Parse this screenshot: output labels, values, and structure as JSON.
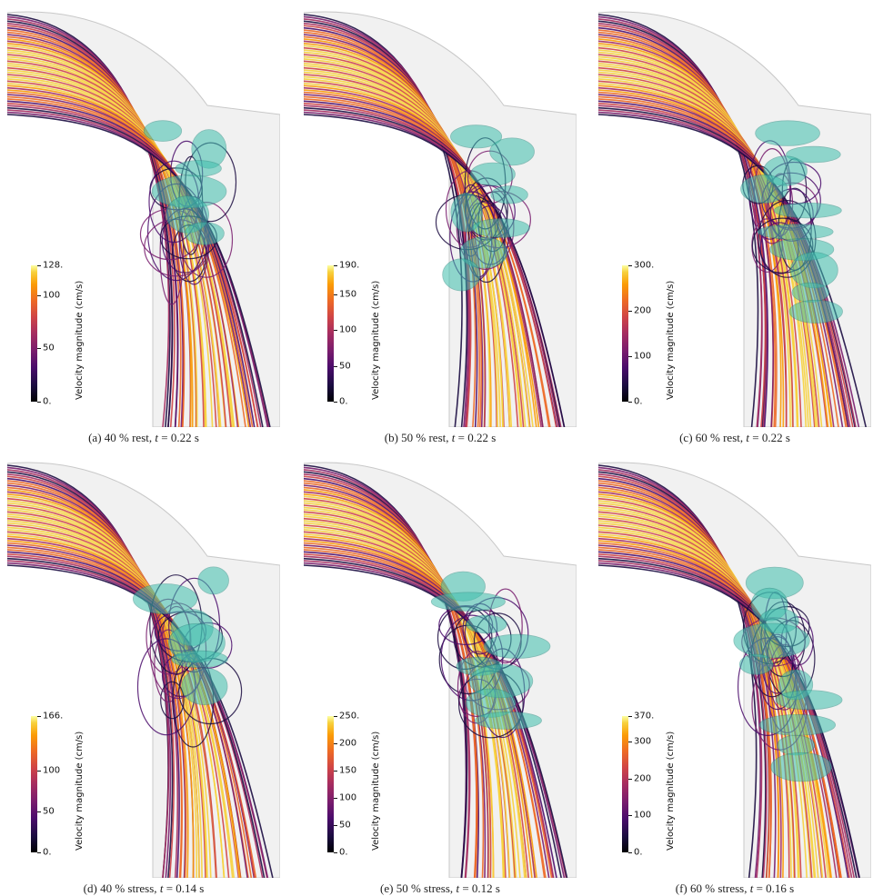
{
  "panels": [
    {
      "caption_prefix": "(a) 40 % rest, ",
      "caption_t": "t",
      "caption_suffix": " = 0.22 s",
      "colorbar": {
        "title": "Velocity magnitude (cm/s)",
        "max_label": "128.",
        "labels": [
          "100",
          "50",
          "0."
        ],
        "max": 128,
        "label_values": [
          100,
          50,
          0
        ]
      }
    },
    {
      "caption_prefix": "(b) 50 % rest, ",
      "caption_t": "t",
      "caption_suffix": " = 0.22 s",
      "colorbar": {
        "title": "Velocity magnitude (cm/s)",
        "max_label": "190.",
        "labels": [
          "150",
          "100",
          "50",
          "0."
        ],
        "max": 190,
        "label_values": [
          150,
          100,
          50,
          0
        ]
      }
    },
    {
      "caption_prefix": "(c) 60 % rest, ",
      "caption_t": "t",
      "caption_suffix": " = 0.22 s",
      "colorbar": {
        "title": "Velocity magnitude (cm/s)",
        "max_label": "300.",
        "labels": [
          "200",
          "100",
          "0."
        ],
        "max": 300,
        "label_values": [
          200,
          100,
          0
        ]
      }
    },
    {
      "caption_prefix": "(d) 40 % stress, ",
      "caption_t": "t",
      "caption_suffix": " = 0.14 s",
      "colorbar": {
        "title": "Velocity magnitude (cm/s)",
        "max_label": "166.",
        "labels": [
          "100",
          "50",
          "0."
        ],
        "max": 166,
        "label_values": [
          100,
          50,
          0
        ]
      }
    },
    {
      "caption_prefix": "(e) 50 % stress, ",
      "caption_t": "t",
      "caption_suffix": " = 0.12 s",
      "colorbar": {
        "title": "Velocity magnitude (cm/s)",
        "max_label": "250.",
        "labels": [
          "200",
          "150",
          "100",
          "50",
          "0."
        ],
        "max": 250,
        "label_values": [
          200,
          150,
          100,
          50,
          0
        ]
      }
    },
    {
      "caption_prefix": "(f) 60 % stress, ",
      "caption_t": "t",
      "caption_suffix": " = 0.16 s",
      "colorbar": {
        "title": "Velocity magnitude (cm/s)",
        "max_label": "370.",
        "labels": [
          "300",
          "200",
          "100",
          "0."
        ],
        "max": 370,
        "label_values": [
          300,
          200,
          100,
          0
        ]
      }
    }
  ],
  "colors": {
    "streamline_low": "#1b0c41",
    "streamline_mid": "#a52c60",
    "streamline_high": "#fb9b06",
    "streamline_peak": "#f7d13d",
    "isosurface": "#3fbfad",
    "mesh": "#c8c8c8"
  }
}
